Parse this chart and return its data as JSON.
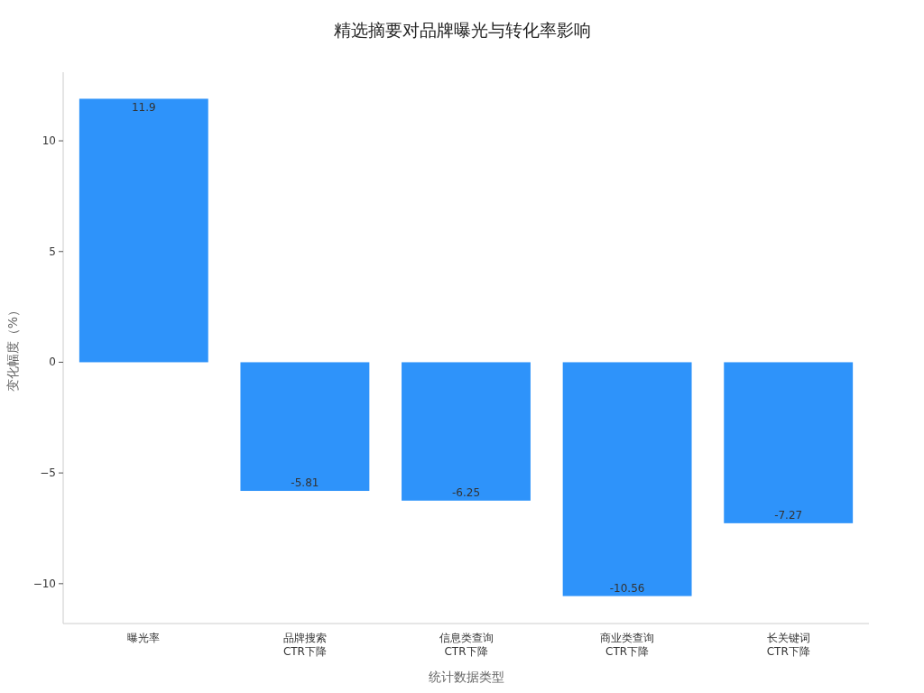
{
  "chart_data": {
    "type": "bar",
    "title": "精选摘要对品牌曝光与转化率影响",
    "xlabel": "统计数据类型",
    "ylabel": "变化幅度（%）",
    "categories": [
      "曝光率",
      "品牌搜索\nCTR下降",
      "信息类查询\nCTR下降",
      "商业类查询\nCTR下降",
      "长关键词\nCTR下降"
    ],
    "values": [
      11.9,
      -5.81,
      -6.25,
      -10.56,
      -7.27
    ],
    "color": "#2e93fa",
    "ylim": [
      -11.8,
      13.1
    ],
    "yticks": [
      -10,
      -5,
      0,
      5,
      10
    ],
    "data_labels": true,
    "grid": false
  }
}
